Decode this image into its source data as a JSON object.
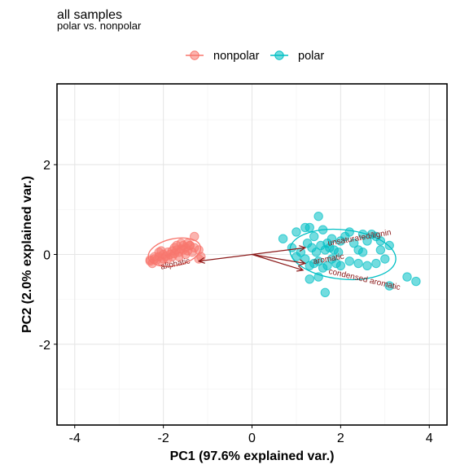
{
  "chart_data": {
    "type": "scatter",
    "title": "all samples",
    "subtitle": "polar vs. nonpolar",
    "xlabel": "PC1 (97.6% explained var.)",
    "ylabel": "PC2 (2.0% explained var.)",
    "xlim": [
      -4.4,
      4.4
    ],
    "ylim": [
      -3.8,
      3.8
    ],
    "xticks": [
      -4,
      -2,
      0,
      2,
      4
    ],
    "yticks": [
      -2,
      0,
      2
    ],
    "grid": true,
    "legend_position": "top",
    "series": [
      {
        "name": "nonpolar",
        "color": "#F8766D",
        "points": [
          [
            -2.3,
            -0.15
          ],
          [
            -2.25,
            -0.2
          ],
          [
            -2.2,
            -0.1
          ],
          [
            -2.15,
            -0.12
          ],
          [
            -2.1,
            -0.05
          ],
          [
            -2.05,
            -0.15
          ],
          [
            -2.0,
            0.0
          ],
          [
            -1.95,
            -0.05
          ],
          [
            -1.9,
            0.05
          ],
          [
            -1.85,
            0.0
          ],
          [
            -1.8,
            0.08
          ],
          [
            -1.75,
            0.02
          ],
          [
            -1.7,
            0.1
          ],
          [
            -1.65,
            0.05
          ],
          [
            -1.6,
            0.12
          ],
          [
            -1.55,
            0.1
          ],
          [
            -1.5,
            0.15
          ],
          [
            -1.45,
            0.08
          ],
          [
            -1.4,
            0.2
          ],
          [
            -1.35,
            0.05
          ],
          [
            -1.3,
            0.15
          ],
          [
            -1.3,
            0.4
          ],
          [
            -1.4,
            0.2
          ],
          [
            -1.6,
            0.25
          ],
          [
            -1.7,
            0.2
          ],
          [
            -1.2,
            0.1
          ],
          [
            -1.15,
            -0.05
          ],
          [
            -1.2,
            -0.1
          ],
          [
            -2.2,
            -0.05
          ],
          [
            -2.1,
            0.05
          ],
          [
            -2.0,
            -0.1
          ],
          [
            -1.9,
            -0.1
          ],
          [
            -1.8,
            -0.05
          ],
          [
            -2.3,
            -0.12
          ],
          [
            -1.55,
            0.2
          ],
          [
            -1.45,
            0.25
          ],
          [
            -1.75,
            0.15
          ],
          [
            -2.05,
            0.08
          ],
          [
            -1.65,
            -0.05
          ],
          [
            -1.5,
            0.0
          ]
        ]
      },
      {
        "name": "polar",
        "color": "#00BFC4",
        "points": [
          [
            0.7,
            0.35
          ],
          [
            0.9,
            0.15
          ],
          [
            1.0,
            0.5
          ],
          [
            1.2,
            0.6
          ],
          [
            1.3,
            0.6
          ],
          [
            1.4,
            0.4
          ],
          [
            1.5,
            0.85
          ],
          [
            1.6,
            0.55
          ],
          [
            1.7,
            0.25
          ],
          [
            1.8,
            0.35
          ],
          [
            1.25,
            0.25
          ],
          [
            1.35,
            0.15
          ],
          [
            1.45,
            0.05
          ],
          [
            1.55,
            0.2
          ],
          [
            1.65,
            0.1
          ],
          [
            1.75,
            0.15
          ],
          [
            1.85,
            0.1
          ],
          [
            1.95,
            0.05
          ],
          [
            2.0,
            0.3
          ],
          [
            2.1,
            0.4
          ],
          [
            2.2,
            0.5
          ],
          [
            2.3,
            0.25
          ],
          [
            2.4,
            0.1
          ],
          [
            2.5,
            0.05
          ],
          [
            2.6,
            0.3
          ],
          [
            2.7,
            0.45
          ],
          [
            2.8,
            0.4
          ],
          [
            2.9,
            0.1
          ],
          [
            3.0,
            -0.1
          ],
          [
            3.1,
            0.2
          ],
          [
            1.2,
            -0.1
          ],
          [
            1.3,
            -0.25
          ],
          [
            1.4,
            -0.2
          ],
          [
            1.5,
            -0.15
          ],
          [
            1.6,
            -0.3
          ],
          [
            1.7,
            -0.25
          ],
          [
            1.8,
            -0.1
          ],
          [
            1.9,
            -0.2
          ],
          [
            2.0,
            -0.25
          ],
          [
            2.2,
            -0.15
          ],
          [
            2.4,
            -0.2
          ],
          [
            2.6,
            -0.25
          ],
          [
            2.8,
            -0.2
          ],
          [
            1.3,
            -0.55
          ],
          [
            1.5,
            -0.5
          ],
          [
            1.65,
            -0.85
          ],
          [
            3.1,
            -0.7
          ],
          [
            3.5,
            -0.5
          ],
          [
            3.7,
            -0.6
          ],
          [
            1.1,
            0.05
          ],
          [
            1.0,
            -0.05
          ],
          [
            2.9,
            0.3
          ],
          [
            2.5,
            0.45
          ]
        ]
      }
    ],
    "ellipses": [
      {
        "series": "nonpolar",
        "center": [
          -1.75,
          0.05
        ],
        "rx": 0.6,
        "ry": 0.3,
        "angle": 12
      },
      {
        "series": "polar",
        "center": [
          2.05,
          0.0
        ],
        "rx": 1.2,
        "ry": 0.55,
        "angle": -6
      }
    ],
    "loadings": [
      {
        "label": "unsaturated/lignin",
        "x": 1.2,
        "y": 0.15
      },
      {
        "label": "aromatic",
        "x": 1.2,
        "y": -0.2
      },
      {
        "label": "condensed aromatic",
        "x": 1.15,
        "y": -0.35
      },
      {
        "label": "aliphatic",
        "x": -1.2,
        "y": -0.15
      }
    ]
  }
}
